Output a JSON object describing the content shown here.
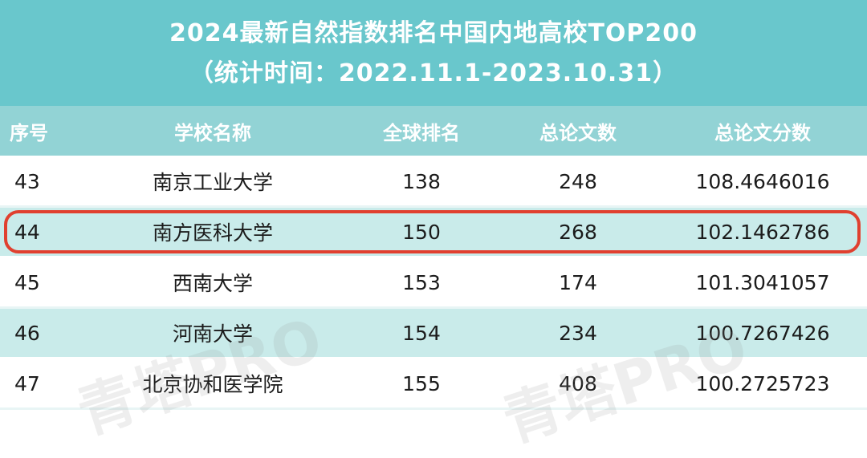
{
  "title": {
    "line1": "2024最新自然指数排名中国内地高校TOP200",
    "line2": "（统计时间：2022.11.1-2023.10.31）"
  },
  "columns": [
    "序号",
    "学校名称",
    "全球排名",
    "总论文数",
    "总论文分数"
  ],
  "rows": [
    {
      "idx": "43",
      "name": "南京工业大学",
      "rank": "138",
      "papers": "248",
      "score": "108.4646016"
    },
    {
      "idx": "44",
      "name": "南方医科大学",
      "rank": "150",
      "papers": "268",
      "score": "102.1462786"
    },
    {
      "idx": "45",
      "name": "西南大学",
      "rank": "153",
      "papers": "174",
      "score": "101.3041057"
    },
    {
      "idx": "46",
      "name": "河南大学",
      "rank": "154",
      "papers": "234",
      "score": "100.7267426"
    },
    {
      "idx": "47",
      "name": "北京协和医学院",
      "rank": "155",
      "papers": "408",
      "score": "100.2725723"
    }
  ],
  "highlighted_row": "44",
  "watermark": "青塔PRO",
  "colors": {
    "title_bg": "#69c7cc",
    "header_bg": "#92d3d5",
    "alt_row_bg": "#c9ebea",
    "highlight_border": "#e0402f"
  }
}
